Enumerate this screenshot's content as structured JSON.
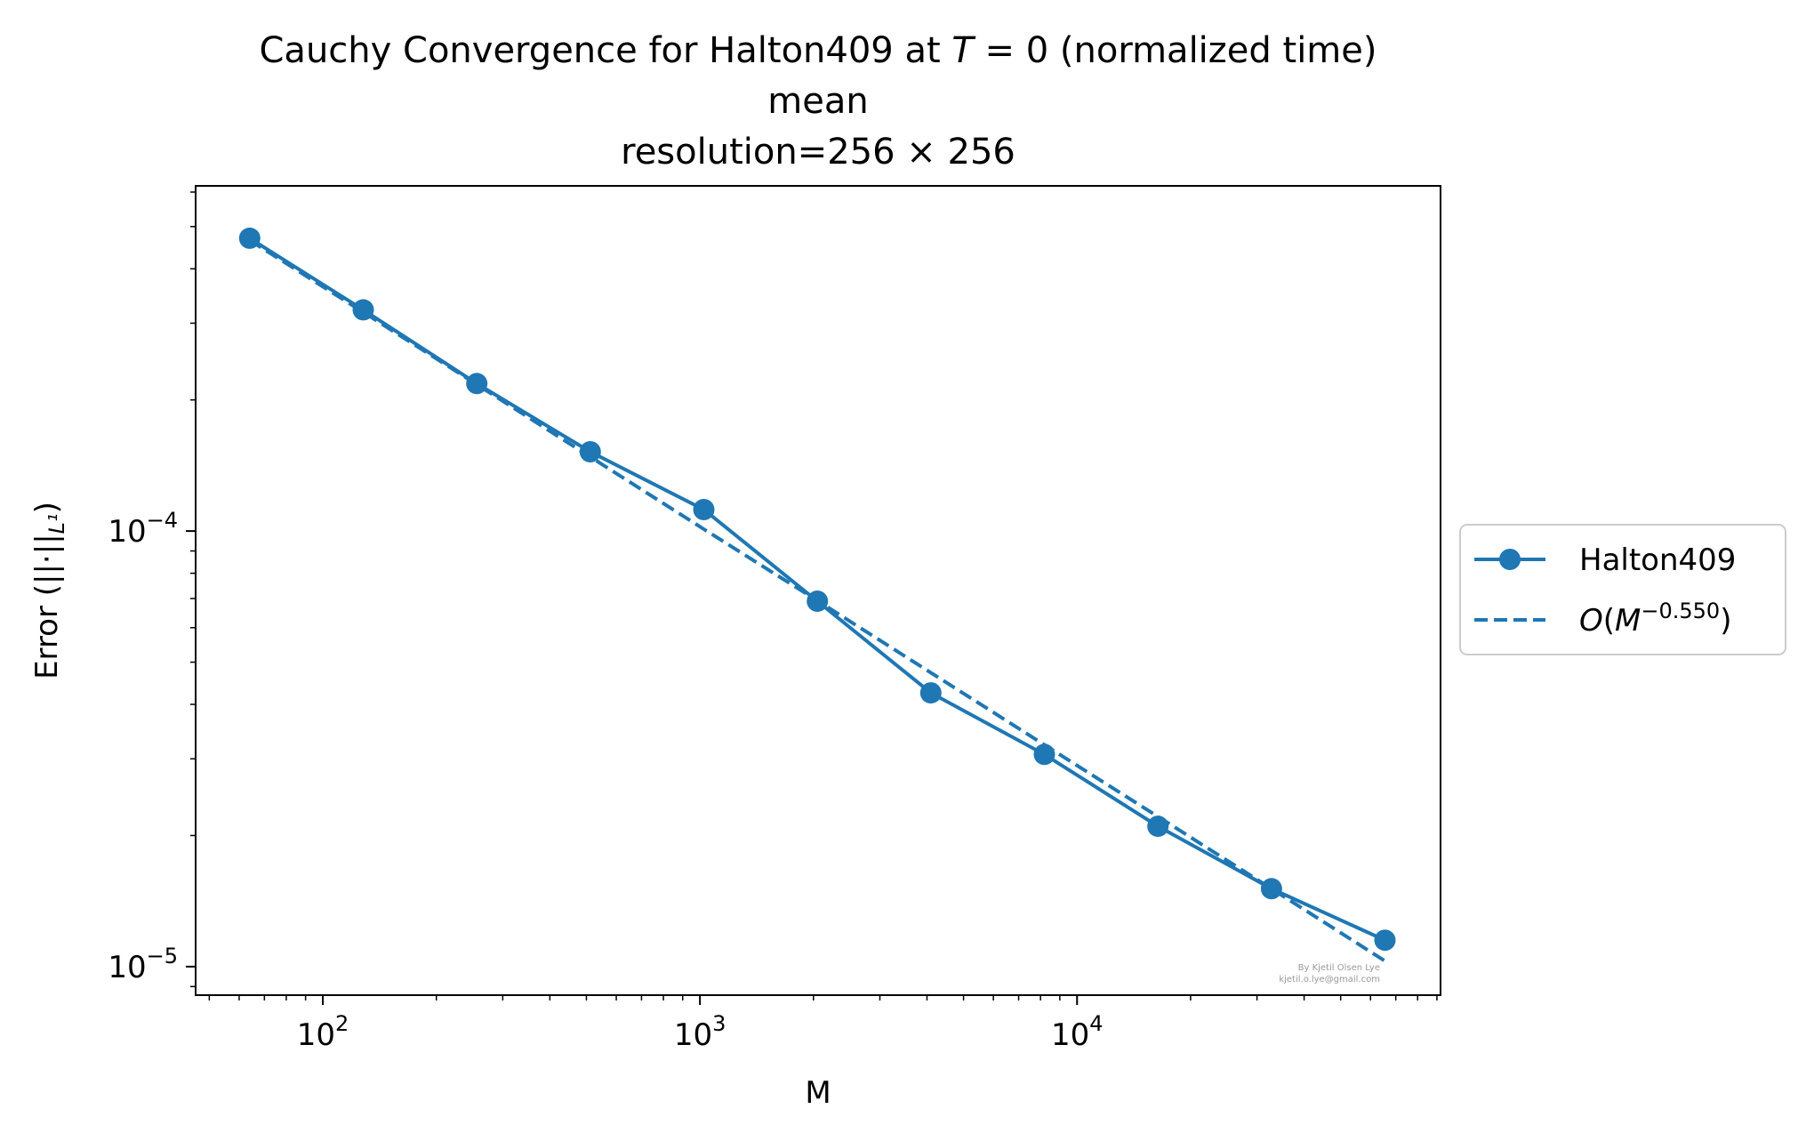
{
  "chart_data": {
    "type": "line",
    "title_lines": [
      "Cauchy Convergence for Halton409 at T = 0 (normalized time)",
      "mean",
      "resolution=256 × 256"
    ],
    "xlabel": "M",
    "ylabel": "Error (||·||L¹)",
    "xscale": "log",
    "yscale": "log",
    "xlim": [
      46,
      92000
    ],
    "ylim": [
      8.6e-06,
      0.00062
    ],
    "x_ticks": [
      {
        "value": 100,
        "base": "10",
        "exp": "2"
      },
      {
        "value": 1000,
        "base": "10",
        "exp": "3"
      },
      {
        "value": 10000,
        "base": "10",
        "exp": "4"
      }
    ],
    "y_ticks": [
      {
        "value": 0.0001,
        "base": "10",
        "exp": "−4"
      },
      {
        "value": 1e-05,
        "base": "10",
        "exp": "−5"
      }
    ],
    "grid": false,
    "legend_position": "right-outside",
    "series": [
      {
        "name": "Halton409",
        "style": "solid-marker",
        "color": "#1f77b4",
        "x": [
          64,
          128,
          256,
          512,
          1024,
          2048,
          4096,
          8192,
          16384,
          32768,
          65536
        ],
        "y": [
          0.00047,
          0.000322,
          0.000218,
          0.000152,
          0.000112,
          6.9e-05,
          4.25e-05,
          3.07e-05,
          2.1e-05,
          1.51e-05,
          1.15e-05
        ]
      },
      {
        "name": "O(M^−0.550)",
        "style": "dashed",
        "color": "#1f77b4",
        "x": [
          64,
          128,
          256,
          512,
          1024,
          2048,
          4096,
          8192,
          16384,
          32768,
          65536
        ],
        "y": [
          0.000465,
          0.000318,
          0.000217,
          0.000148,
          0.000101,
          6.92e-05,
          4.73e-05,
          3.23e-05,
          2.21e-05,
          1.51e-05,
          1.03e-05
        ]
      }
    ],
    "credit_lines": [
      "By Kjetil Olsen Lye",
      "kjetil.o.lye@gmail.com"
    ]
  }
}
